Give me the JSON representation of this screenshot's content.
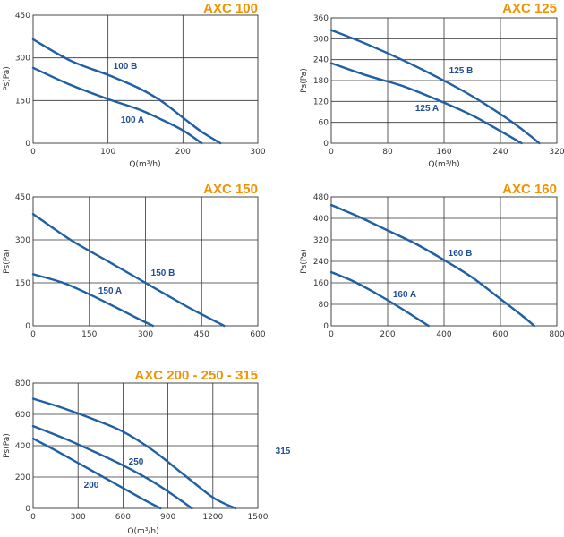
{
  "colors": {
    "title": "#f39200",
    "curve": "#1f5fa3",
    "series_label": "#1f4e96",
    "grid": "#333333"
  },
  "chart_data": [
    {
      "type": "line",
      "title": "AXC 100",
      "xlabel": "Q(m³/h)",
      "ylabel": "Ps(Pa)",
      "xlim": [
        0,
        300
      ],
      "ylim": [
        0,
        450
      ],
      "xticks": [
        0,
        100,
        200,
        300
      ],
      "yticks": [
        0,
        150,
        300,
        450
      ],
      "grid": true,
      "series": [
        {
          "name": "100 B",
          "x": [
            0,
            50,
            100,
            140,
            170,
            200,
            225,
            250
          ],
          "y": [
            365,
            290,
            240,
            195,
            150,
            90,
            40,
            0
          ]
        },
        {
          "name": "100 A",
          "x": [
            0,
            50,
            100,
            140,
            170,
            200,
            225
          ],
          "y": [
            265,
            205,
            155,
            120,
            85,
            45,
            0
          ]
        }
      ]
    },
    {
      "type": "line",
      "title": "AXC 125",
      "xlabel": "Q(m³/h)",
      "ylabel": "Ps(Pa)",
      "xlim": [
        0,
        320
      ],
      "ylim": [
        0,
        360
      ],
      "xticks": [
        0,
        80,
        160,
        240,
        320
      ],
      "yticks": [
        0,
        60,
        120,
        180,
        240,
        300,
        360
      ],
      "grid": true,
      "series": [
        {
          "name": "125 B",
          "x": [
            0,
            50,
            100,
            150,
            200,
            250,
            280,
            295
          ],
          "y": [
            325,
            285,
            240,
            190,
            135,
            70,
            25,
            0
          ]
        },
        {
          "name": "125 A",
          "x": [
            0,
            50,
            100,
            150,
            200,
            240,
            270
          ],
          "y": [
            230,
            195,
            165,
            125,
            80,
            35,
            0
          ]
        }
      ]
    },
    {
      "type": "line",
      "title": "AXC 150",
      "xlabel": "",
      "ylabel": "Ps(Pa)",
      "xlim": [
        0,
        600
      ],
      "ylim": [
        0,
        450
      ],
      "xticks": [
        0,
        150,
        300,
        450,
        600
      ],
      "yticks": [
        0,
        150,
        300,
        450
      ],
      "grid": true,
      "series": [
        {
          "name": "150 B",
          "x": [
            0,
            100,
            200,
            300,
            400,
            450,
            510
          ],
          "y": [
            390,
            300,
            225,
            150,
            75,
            40,
            0
          ]
        },
        {
          "name": "150 A",
          "x": [
            0,
            80,
            150,
            220,
            280,
            320
          ],
          "y": [
            180,
            150,
            110,
            65,
            25,
            0
          ]
        }
      ]
    },
    {
      "type": "line",
      "title": "AXC 160",
      "xlabel": "",
      "ylabel": "Ps(Pa)",
      "xlim": [
        0,
        800
      ],
      "ylim": [
        0,
        480
      ],
      "xticks": [
        0,
        200,
        400,
        600,
        800
      ],
      "yticks": [
        0,
        80,
        160,
        240,
        320,
        400,
        480
      ],
      "grid": true,
      "series": [
        {
          "name": "160 B",
          "x": [
            0,
            100,
            200,
            300,
            400,
            500,
            600,
            680,
            720
          ],
          "y": [
            450,
            405,
            355,
            305,
            245,
            180,
            100,
            35,
            0
          ]
        },
        {
          "name": "160 A",
          "x": [
            0,
            80,
            160,
            240,
            300,
            345
          ],
          "y": [
            200,
            165,
            120,
            70,
            30,
            0
          ]
        }
      ]
    },
    {
      "type": "line",
      "title": "AXC 200 - 250 - 315",
      "xlabel": "Q(m³/h)",
      "ylabel": "Ps(Pa)",
      "xlim": [
        0,
        1500
      ],
      "ylim": [
        0,
        800
      ],
      "xticks": [
        0,
        300,
        600,
        900,
        1200,
        1500
      ],
      "yticks": [
        0,
        200,
        400,
        600,
        800
      ],
      "grid": true,
      "series": [
        {
          "name": "315",
          "x": [
            0,
            200,
            400,
            600,
            800,
            1000,
            1200,
            1350
          ],
          "y": [
            700,
            640,
            570,
            490,
            370,
            220,
            70,
            0
          ]
        },
        {
          "name": "250",
          "x": [
            0,
            200,
            400,
            600,
            800,
            950,
            1060
          ],
          "y": [
            525,
            450,
            365,
            275,
            170,
            75,
            0
          ]
        },
        {
          "name": "200",
          "x": [
            0,
            150,
            300,
            450,
            600,
            750,
            850
          ],
          "y": [
            445,
            370,
            290,
            210,
            130,
            50,
            0
          ]
        }
      ]
    }
  ]
}
